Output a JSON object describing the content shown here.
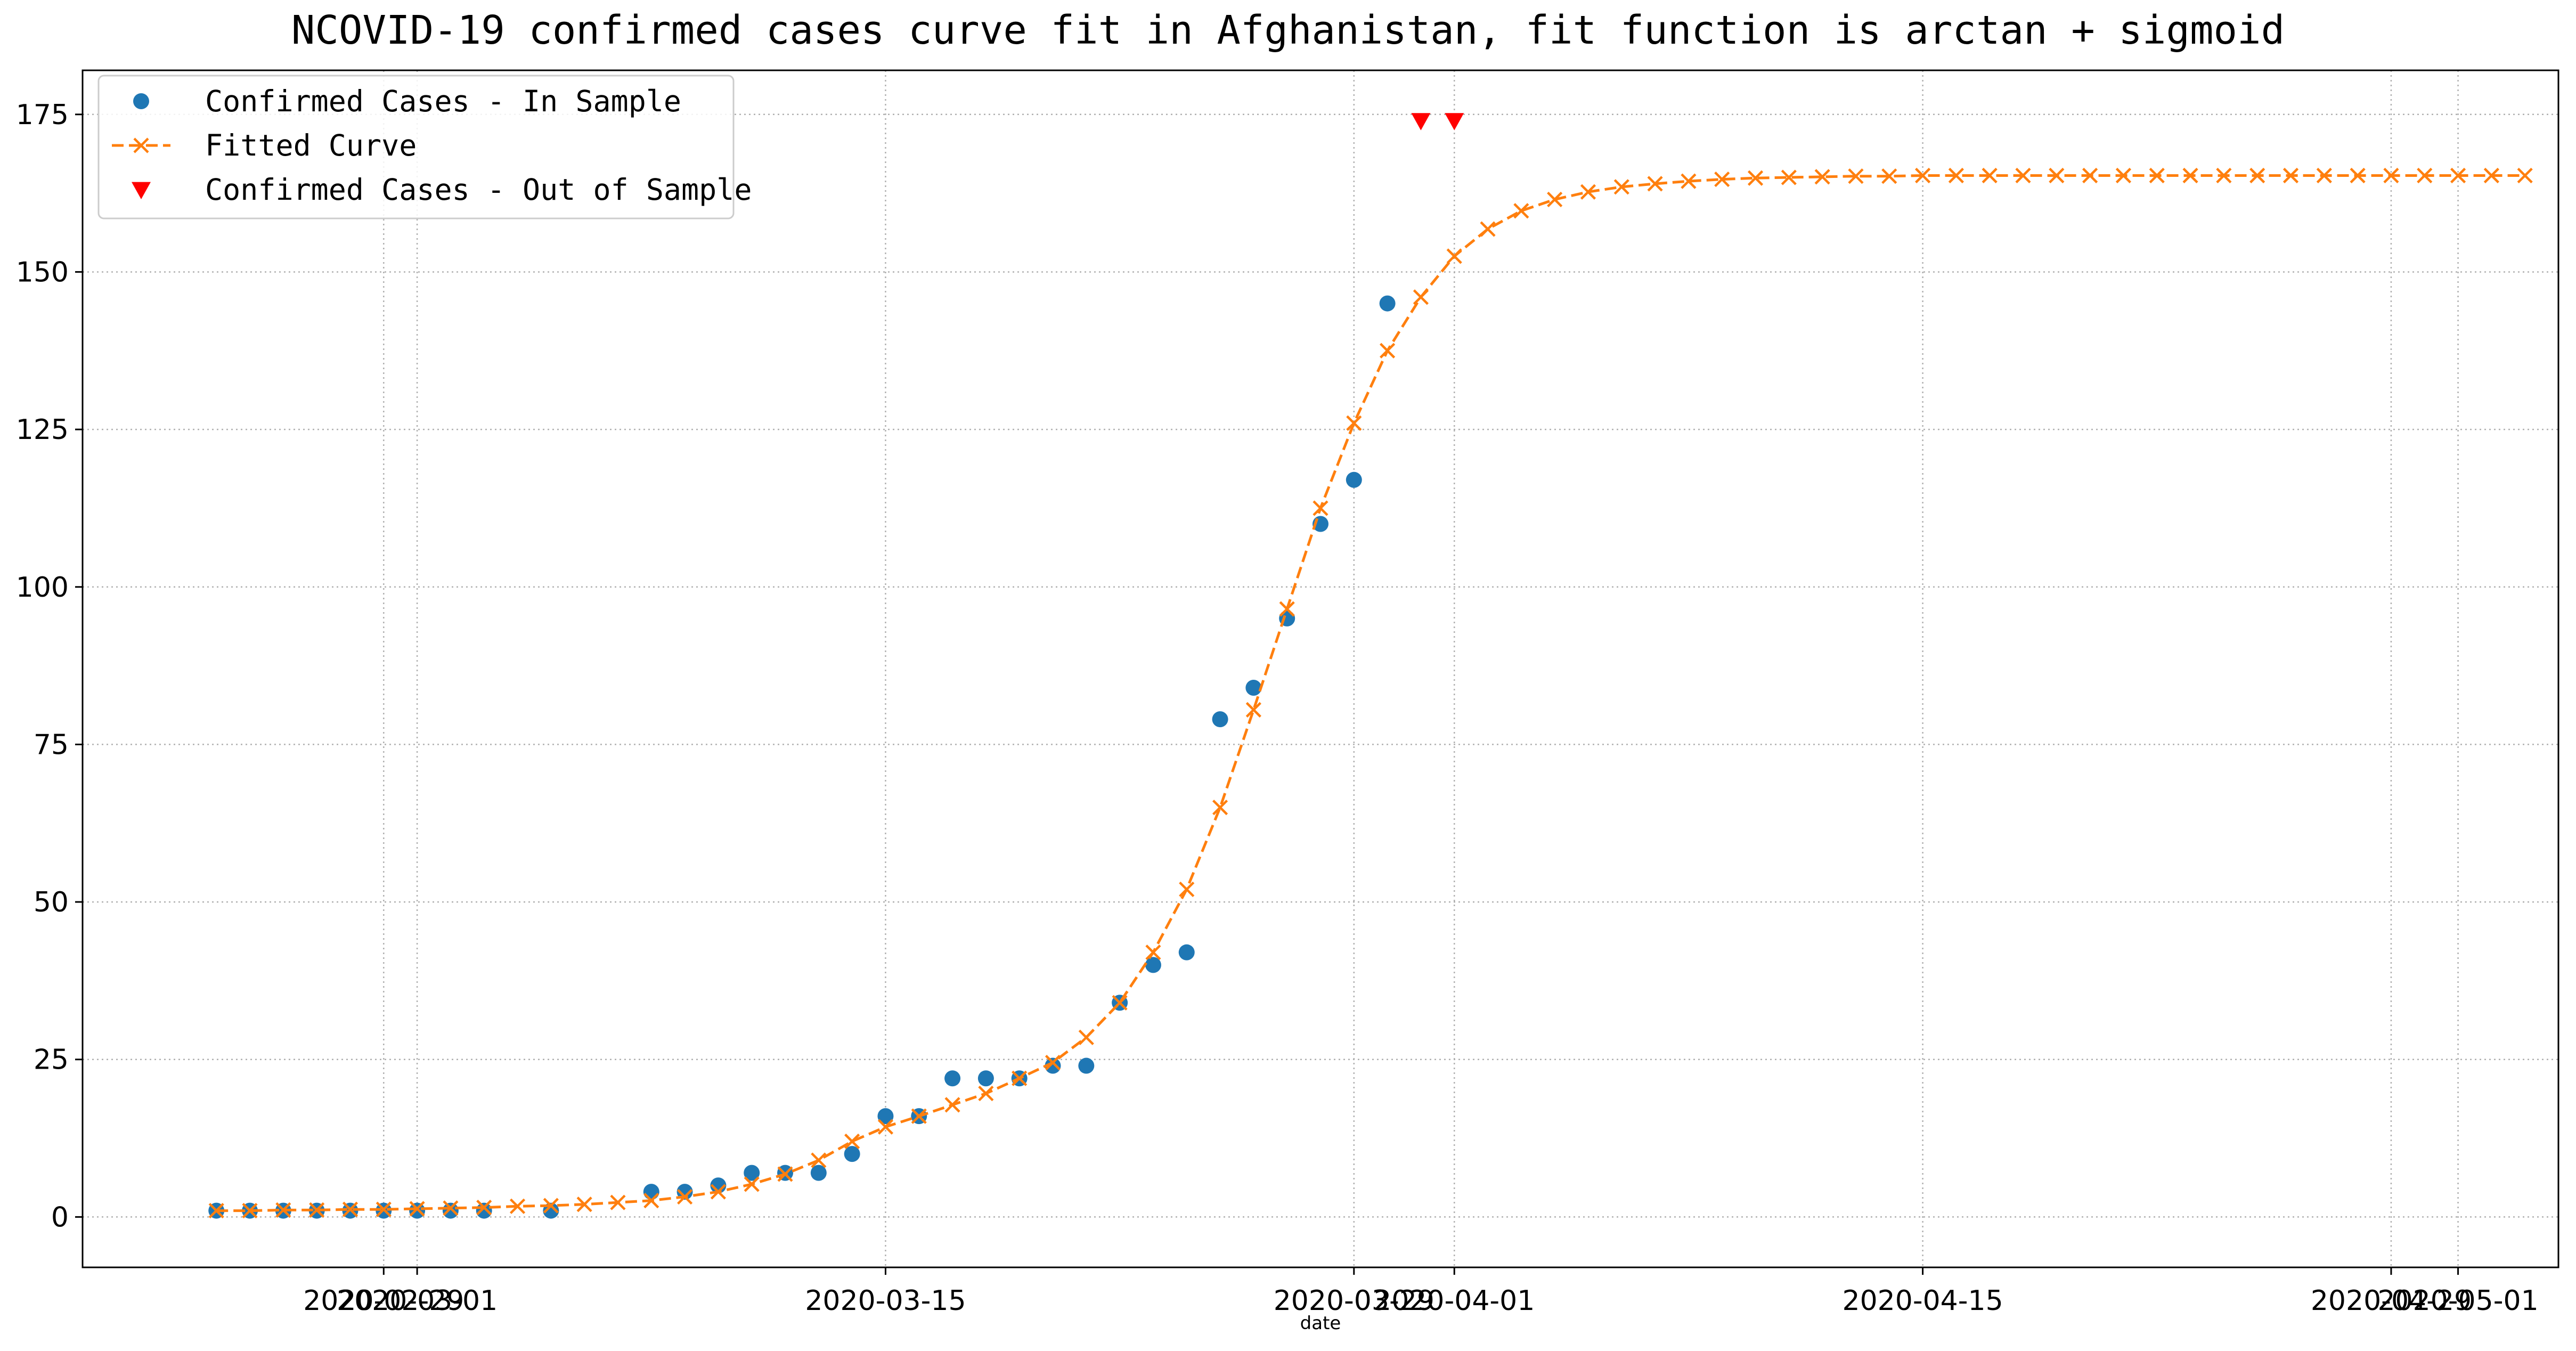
{
  "chart_data": {
    "type": "line",
    "title": "NCOVID-19 confirmed cases curve fit in Afghanistan, fit function is arctan + sigmoid",
    "xlabel": "date",
    "ylabel": "",
    "xlim": [
      "2020-02-20",
      "2020-05-04"
    ],
    "ylim": [
      -8,
      182
    ],
    "grid": true,
    "legend_position": "top-left",
    "x_ticks": [
      "2020-02-29",
      "2020-03-01",
      "2020-03-15",
      "2020-03-29",
      "2020-04-01",
      "2020-04-15",
      "2020-04-29",
      "2020-05-01"
    ],
    "y_ticks": [
      0,
      25,
      50,
      75,
      100,
      125,
      150,
      175
    ],
    "series": [
      {
        "name": "Confirmed Cases - In Sample",
        "kind": "scatter",
        "marker": "circle",
        "color": "#1f77b4",
        "x": [
          "2020-02-24",
          "2020-02-25",
          "2020-02-26",
          "2020-02-27",
          "2020-02-28",
          "2020-02-29",
          "2020-03-01",
          "2020-03-02",
          "2020-03-03",
          "2020-03-05",
          "2020-03-08",
          "2020-03-09",
          "2020-03-10",
          "2020-03-11",
          "2020-03-12",
          "2020-03-13",
          "2020-03-14",
          "2020-03-15",
          "2020-03-16",
          "2020-03-17",
          "2020-03-18",
          "2020-03-19",
          "2020-03-20",
          "2020-03-21",
          "2020-03-22",
          "2020-03-23",
          "2020-03-24",
          "2020-03-25",
          "2020-03-26",
          "2020-03-27",
          "2020-03-28",
          "2020-03-29",
          "2020-03-30"
        ],
        "y": [
          1,
          1,
          1,
          1,
          1,
          1,
          1,
          1,
          1,
          1,
          4,
          4,
          5,
          7,
          7,
          7,
          10,
          16,
          16,
          22,
          22,
          22,
          24,
          24,
          34,
          40,
          42,
          79,
          84,
          95,
          110,
          117,
          145
        ]
      },
      {
        "name": "Fitted Curve",
        "kind": "line",
        "marker": "x",
        "dash": "dashed",
        "color": "#ff7f0e",
        "x": [
          "2020-02-24",
          "2020-02-25",
          "2020-02-26",
          "2020-02-27",
          "2020-02-28",
          "2020-02-29",
          "2020-03-01",
          "2020-03-02",
          "2020-03-03",
          "2020-03-04",
          "2020-03-05",
          "2020-03-06",
          "2020-03-07",
          "2020-03-08",
          "2020-03-09",
          "2020-03-10",
          "2020-03-11",
          "2020-03-12",
          "2020-03-13",
          "2020-03-14",
          "2020-03-15",
          "2020-03-16",
          "2020-03-17",
          "2020-03-18",
          "2020-03-19",
          "2020-03-20",
          "2020-03-21",
          "2020-03-22",
          "2020-03-23",
          "2020-03-24",
          "2020-03-25",
          "2020-03-26",
          "2020-03-27",
          "2020-03-28",
          "2020-03-29",
          "2020-03-30",
          "2020-03-31",
          "2020-04-01",
          "2020-04-02",
          "2020-04-03",
          "2020-04-04",
          "2020-04-05",
          "2020-04-06",
          "2020-04-07",
          "2020-04-08",
          "2020-04-09",
          "2020-04-10",
          "2020-04-11",
          "2020-04-12",
          "2020-04-13",
          "2020-04-14",
          "2020-04-15",
          "2020-04-16",
          "2020-04-17",
          "2020-04-18",
          "2020-04-19",
          "2020-04-20",
          "2020-04-21",
          "2020-04-22",
          "2020-04-23",
          "2020-04-24",
          "2020-04-25",
          "2020-04-26",
          "2020-04-27",
          "2020-04-28",
          "2020-04-29",
          "2020-04-30",
          "2020-05-01",
          "2020-05-02",
          "2020-05-03"
        ],
        "y": [
          1.0,
          1.0,
          1.1,
          1.1,
          1.2,
          1.2,
          1.3,
          1.4,
          1.5,
          1.7,
          1.8,
          2.0,
          2.3,
          2.6,
          3.2,
          4.0,
          5.2,
          6.8,
          9.0,
          12.0,
          14.3,
          16.0,
          17.8,
          19.6,
          22.0,
          24.5,
          28.5,
          34.0,
          42.0,
          52.0,
          65.0,
          80.5,
          96.5,
          112.5,
          126.0,
          137.5,
          146.0,
          152.5,
          156.8,
          159.7,
          161.5,
          162.7,
          163.5,
          164.0,
          164.4,
          164.7,
          164.9,
          165.0,
          165.1,
          165.2,
          165.2,
          165.3,
          165.3,
          165.3,
          165.3,
          165.3,
          165.3,
          165.3,
          165.3,
          165.3,
          165.3,
          165.3,
          165.3,
          165.3,
          165.3,
          165.3,
          165.3,
          165.3,
          165.3,
          165.3
        ]
      },
      {
        "name": "Confirmed Cases - Out of Sample",
        "kind": "scatter",
        "marker": "triangle-down",
        "color": "#ff0000",
        "x": [
          "2020-03-31",
          "2020-04-01"
        ],
        "y": [
          174,
          174
        ]
      }
    ]
  }
}
